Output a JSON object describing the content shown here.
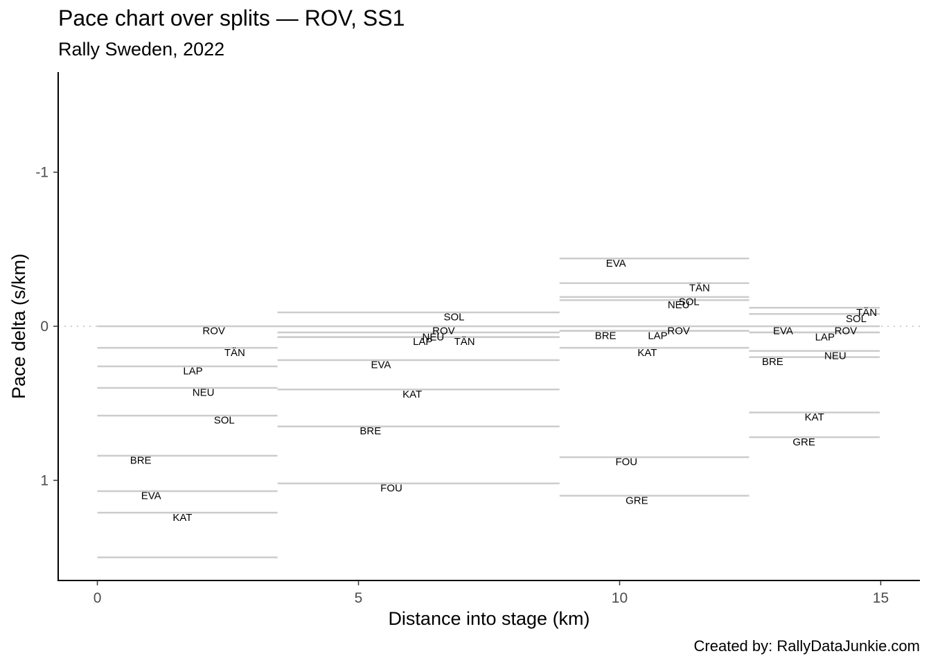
{
  "chart_data": {
    "type": "step-segments",
    "title": "Pace chart over splits — ROV, SS1",
    "subtitle": "Rally Sweden, 2022",
    "caption": "Created by: RallyDataJunkie.com",
    "xlabel": "Distance into stage (km)",
    "ylabel": "Pace delta (s/km)",
    "xlim": [
      -0.75,
      15.75
    ],
    "ylim": [
      1.65,
      -1.65
    ],
    "y_reversed": true,
    "xticks": [
      0,
      5,
      10,
      15
    ],
    "yticks": [
      -1,
      0,
      1
    ],
    "reference_line_y": 0,
    "segments": [
      {
        "x0": 0.0,
        "x1": 3.45,
        "label_x": 1.55,
        "drivers": [
          {
            "name": "ROV",
            "pace": 0.0
          },
          {
            "name": "TÄN",
            "pace": 0.14
          },
          {
            "name": "LAP",
            "pace": 0.26
          },
          {
            "name": "NEU",
            "pace": 0.4
          },
          {
            "name": "SOL",
            "pace": 0.58
          },
          {
            "name": "BRE",
            "pace": 0.84
          },
          {
            "name": "EVA",
            "pace": 1.07
          },
          {
            "name": "KAT",
            "pace": 1.21
          },
          {
            "name": "",
            "pace": 1.5
          }
        ]
      },
      {
        "x0": 3.45,
        "x1": 8.85,
        "label_x": 6.15,
        "drivers": [
          {
            "name": "SOL",
            "pace": -0.09
          },
          {
            "name": "ROV",
            "pace": 0.0
          },
          {
            "name": "NEU",
            "pace": 0.04
          },
          {
            "name": "LAP",
            "pace": 0.07
          },
          {
            "name": "TÄN",
            "pace": 0.07
          },
          {
            "name": "EVA",
            "pace": 0.22
          },
          {
            "name": "KAT",
            "pace": 0.41
          },
          {
            "name": "BRE",
            "pace": 0.65
          },
          {
            "name": "FOU",
            "pace": 1.02
          }
        ]
      },
      {
        "x0": 8.85,
        "x1": 12.48,
        "label_x": 10.66,
        "drivers": [
          {
            "name": "EVA",
            "pace": -0.44
          },
          {
            "name": "TÄN",
            "pace": -0.28
          },
          {
            "name": "SOL",
            "pace": -0.19
          },
          {
            "name": "NEU",
            "pace": -0.17
          },
          {
            "name": "ROV",
            "pace": 0.0
          },
          {
            "name": "LAP",
            "pace": 0.03
          },
          {
            "name": "BRE",
            "pace": 0.03
          },
          {
            "name": "KAT",
            "pace": 0.14
          },
          {
            "name": "FOU",
            "pace": 0.85
          },
          {
            "name": "GRE",
            "pace": 1.1
          }
        ]
      },
      {
        "x0": 12.48,
        "x1": 14.98,
        "label_x": 13.73,
        "drivers": [
          {
            "name": "TÄN",
            "pace": -0.12
          },
          {
            "name": "SOL",
            "pace": -0.08
          },
          {
            "name": "ROV",
            "pace": 0.0
          },
          {
            "name": "EVA",
            "pace": 0.04
          },
          {
            "name": "LAP",
            "pace": 0.04
          },
          {
            "name": "NEU",
            "pace": 0.16
          },
          {
            "name": "BRE",
            "pace": 0.2
          },
          {
            "name": "KAT",
            "pace": 0.56
          },
          {
            "name": "GRE",
            "pace": 0.72
          }
        ]
      }
    ],
    "labels": [
      {
        "text": "ROV",
        "x": 2.23,
        "y": 0.03
      },
      {
        "text": "TÄN",
        "x": 2.63,
        "y": 0.17
      },
      {
        "text": "LAP",
        "x": 1.83,
        "y": 0.29
      },
      {
        "text": "NEU",
        "x": 2.03,
        "y": 0.43
      },
      {
        "text": "SOL",
        "x": 2.43,
        "y": 0.61
      },
      {
        "text": "BRE",
        "x": 0.83,
        "y": 0.87
      },
      {
        "text": "EVA",
        "x": 1.03,
        "y": 1.1
      },
      {
        "text": "KAT",
        "x": 1.63,
        "y": 1.24
      },
      {
        "text": "SOL",
        "x": 6.83,
        "y": -0.06
      },
      {
        "text": "ROV",
        "x": 6.63,
        "y": 0.03
      },
      {
        "text": "NEU",
        "x": 6.43,
        "y": 0.07
      },
      {
        "text": "LAP",
        "x": 6.23,
        "y": 0.1
      },
      {
        "text": "TÄN",
        "x": 7.03,
        "y": 0.1
      },
      {
        "text": "EVA",
        "x": 5.43,
        "y": 0.25
      },
      {
        "text": "KAT",
        "x": 6.03,
        "y": 0.44
      },
      {
        "text": "BRE",
        "x": 5.23,
        "y": 0.68
      },
      {
        "text": "FOU",
        "x": 5.63,
        "y": 1.05
      },
      {
        "text": "EVA",
        "x": 9.93,
        "y": -0.41
      },
      {
        "text": "TÄN",
        "x": 11.53,
        "y": -0.25
      },
      {
        "text": "SOL",
        "x": 11.33,
        "y": -0.16
      },
      {
        "text": "NEU",
        "x": 11.13,
        "y": -0.14
      },
      {
        "text": "ROV",
        "x": 11.13,
        "y": 0.03
      },
      {
        "text": "LAP",
        "x": 10.73,
        "y": 0.06
      },
      {
        "text": "BRE",
        "x": 9.73,
        "y": 0.06
      },
      {
        "text": "KAT",
        "x": 10.53,
        "y": 0.17
      },
      {
        "text": "FOU",
        "x": 10.13,
        "y": 0.88
      },
      {
        "text": "GRE",
        "x": 10.33,
        "y": 1.13
      },
      {
        "text": "TÄN",
        "x": 14.73,
        "y": -0.09
      },
      {
        "text": "SOL",
        "x": 14.53,
        "y": -0.05
      },
      {
        "text": "ROV",
        "x": 14.33,
        "y": 0.03
      },
      {
        "text": "EVA",
        "x": 13.13,
        "y": 0.03
      },
      {
        "text": "LAP",
        "x": 13.93,
        "y": 0.07
      },
      {
        "text": "NEU",
        "x": 14.13,
        "y": 0.19
      },
      {
        "text": "BRE",
        "x": 12.93,
        "y": 0.23
      },
      {
        "text": "KAT",
        "x": 13.73,
        "y": 0.59
      },
      {
        "text": "GRE",
        "x": 13.53,
        "y": 0.75
      }
    ]
  }
}
